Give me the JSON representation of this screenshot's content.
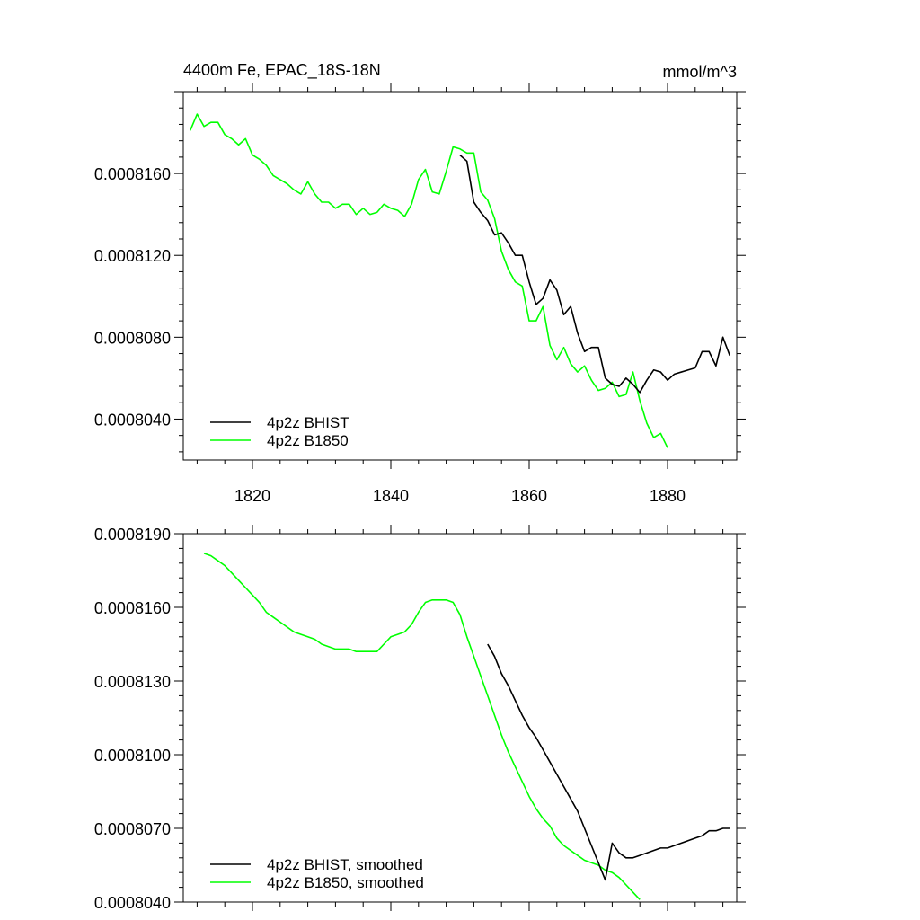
{
  "chart_data": [
    {
      "type": "line",
      "title_left": "4400m Fe, EPAC_18S-18N",
      "title_right": "mmol/m^3",
      "xlabel": "",
      "ylabel": "",
      "xlim": [
        1810,
        1890
      ],
      "ylim": [
        0.000802,
        0.00082
      ],
      "x_ticks": [
        1820,
        1840,
        1860,
        1880
      ],
      "x_tick_labels": [
        "1820",
        "1840",
        "1860",
        "1880"
      ],
      "y_ticks": [
        0.000804,
        0.000808,
        0.000812,
        0.000816
      ],
      "y_tick_labels": [
        "0.0008040",
        "0.0008080",
        "0.0008120",
        "0.0008160"
      ],
      "legend_position": "bottom-left",
      "series": [
        {
          "name": "4p2z BHIST",
          "color": "#000000",
          "x": [
            1850,
            1851,
            1852,
            1853,
            1854,
            1855,
            1856,
            1857,
            1858,
            1859,
            1860,
            1861,
            1862,
            1863,
            1864,
            1865,
            1866,
            1867,
            1868,
            1869,
            1870,
            1871,
            1872,
            1873,
            1874,
            1875,
            1876,
            1877,
            1878,
            1879,
            1880,
            1881,
            1882,
            1883,
            1884,
            1885,
            1886,
            1887,
            1888,
            1889
          ],
          "values": [
            0.0008169,
            0.0008166,
            0.0008146,
            0.0008141,
            0.0008137,
            0.000813,
            0.0008131,
            0.0008126,
            0.000812,
            0.000812,
            0.0008107,
            0.0008096,
            0.0008099,
            0.0008108,
            0.0008103,
            0.0008091,
            0.0008095,
            0.0008082,
            0.0008073,
            0.0008075,
            0.0008075,
            0.000806,
            0.0008057,
            0.0008056,
            0.000806,
            0.0008057,
            0.0008053,
            0.0008059,
            0.0008064,
            0.0008063,
            0.0008059,
            0.0008062,
            0.0008063,
            0.0008064,
            0.0008065,
            0.0008073,
            0.0008073,
            0.0008066,
            0.000808,
            0.0008071
          ]
        },
        {
          "name": "4p2z B1850",
          "color": "#00ff00",
          "x": [
            1811,
            1812,
            1813,
            1814,
            1815,
            1816,
            1817,
            1818,
            1819,
            1820,
            1821,
            1822,
            1823,
            1824,
            1825,
            1826,
            1827,
            1828,
            1829,
            1830,
            1831,
            1832,
            1833,
            1834,
            1835,
            1836,
            1837,
            1838,
            1839,
            1840,
            1841,
            1842,
            1843,
            1844,
            1845,
            1846,
            1847,
            1848,
            1849,
            1850,
            1851,
            1852,
            1853,
            1854,
            1855,
            1856,
            1857,
            1858,
            1859,
            1860,
            1861,
            1862,
            1863,
            1864,
            1865,
            1866,
            1867,
            1868,
            1869,
            1870,
            1871,
            1872,
            1873,
            1874,
            1875,
            1876,
            1877,
            1878,
            1879,
            1880
          ],
          "values": [
            0.0008181,
            0.0008189,
            0.0008183,
            0.0008185,
            0.0008185,
            0.0008179,
            0.0008177,
            0.0008174,
            0.0008177,
            0.0008169,
            0.0008167,
            0.0008164,
            0.0008159,
            0.0008157,
            0.0008155,
            0.0008152,
            0.000815,
            0.0008156,
            0.000815,
            0.0008146,
            0.0008146,
            0.0008143,
            0.0008145,
            0.0008145,
            0.000814,
            0.0008143,
            0.000814,
            0.0008141,
            0.0008145,
            0.0008143,
            0.0008142,
            0.0008139,
            0.0008145,
            0.0008157,
            0.0008162,
            0.0008151,
            0.000815,
            0.0008161,
            0.0008173,
            0.0008172,
            0.000817,
            0.000817,
            0.0008151,
            0.0008147,
            0.0008138,
            0.0008122,
            0.0008113,
            0.0008107,
            0.0008105,
            0.0008088,
            0.0008088,
            0.0008095,
            0.0008076,
            0.0008069,
            0.0008075,
            0.0008067,
            0.0008063,
            0.0008066,
            0.0008059,
            0.0008054,
            0.0008055,
            0.0008058,
            0.0008051,
            0.0008052,
            0.0008063,
            0.0008049,
            0.0008038,
            0.0008031,
            0.0008033,
            0.0008026
          ]
        }
      ]
    },
    {
      "type": "line",
      "title_left": "",
      "title_right": "",
      "xlabel": "",
      "ylabel": "",
      "xlim": [
        1810,
        1890
      ],
      "ylim": [
        0.000804,
        0.000819
      ],
      "x_ticks": [
        1820,
        1840,
        1860,
        1880
      ],
      "x_tick_labels": [],
      "y_ticks": [
        0.000804,
        0.000807,
        0.00081,
        0.000813,
        0.000816,
        0.000819
      ],
      "y_tick_labels": [
        "0.0008040",
        "0.0008070",
        "0.0008100",
        "0.0008130",
        "0.0008160",
        "0.0008190"
      ],
      "legend_position": "bottom-left",
      "series": [
        {
          "name": "4p2z BHIST, smoothed",
          "color": "#000000",
          "x": [
            1854,
            1855,
            1856,
            1857,
            1858,
            1859,
            1860,
            1861,
            1862,
            1863,
            1864,
            1865,
            1866,
            1867,
            1868,
            1869,
            1870,
            1871,
            1872,
            1873,
            1874,
            1875,
            1876,
            1877,
            1878,
            1879,
            1880,
            1881,
            1882,
            1883,
            1884,
            1885,
            1886,
            1887,
            1888,
            1889
          ],
          "values": [
            0.0008145,
            0.000814,
            0.0008133,
            0.0008128,
            0.0008122,
            0.0008116,
            0.0008111,
            0.0008107,
            0.0008102,
            0.0008097,
            0.0008092,
            0.0008087,
            0.0008082,
            0.0008077,
            0.000807,
            0.0008063,
            0.0008056,
            0.0008049,
            0.0008064,
            0.000806,
            0.0008058,
            0.0008058,
            0.0008059,
            0.000806,
            0.0008061,
            0.0008062,
            0.0008062,
            0.0008063,
            0.0008064,
            0.0008065,
            0.0008066,
            0.0008067,
            0.0008069,
            0.0008069,
            0.000807,
            0.000807
          ]
        },
        {
          "name": "4p2z B1850, smoothed",
          "color": "#00ff00",
          "x": [
            1813,
            1814,
            1815,
            1816,
            1817,
            1818,
            1819,
            1820,
            1821,
            1822,
            1823,
            1824,
            1825,
            1826,
            1827,
            1828,
            1829,
            1830,
            1831,
            1832,
            1833,
            1834,
            1835,
            1836,
            1837,
            1838,
            1839,
            1840,
            1841,
            1842,
            1843,
            1844,
            1845,
            1846,
            1847,
            1848,
            1849,
            1850,
            1851,
            1852,
            1853,
            1854,
            1855,
            1856,
            1857,
            1858,
            1859,
            1860,
            1861,
            1862,
            1863,
            1864,
            1865,
            1866,
            1867,
            1868,
            1869,
            1870,
            1871,
            1872,
            1873,
            1874,
            1875,
            1876
          ],
          "values": [
            0.0008182,
            0.0008181,
            0.0008179,
            0.0008177,
            0.0008174,
            0.0008171,
            0.0008168,
            0.0008165,
            0.0008162,
            0.0008158,
            0.0008156,
            0.0008154,
            0.0008152,
            0.000815,
            0.0008149,
            0.0008148,
            0.0008147,
            0.0008145,
            0.0008144,
            0.0008143,
            0.0008143,
            0.0008143,
            0.0008142,
            0.0008142,
            0.0008142,
            0.0008142,
            0.0008145,
            0.0008148,
            0.0008149,
            0.000815,
            0.0008153,
            0.0008158,
            0.0008162,
            0.0008163,
            0.0008163,
            0.0008163,
            0.0008162,
            0.0008157,
            0.0008148,
            0.000814,
            0.0008132,
            0.0008124,
            0.0008116,
            0.0008108,
            0.0008101,
            0.0008095,
            0.0008089,
            0.0008083,
            0.0008078,
            0.0008074,
            0.0008071,
            0.0008066,
            0.0008063,
            0.0008061,
            0.0008059,
            0.0008057,
            0.0008056,
            0.0008055,
            0.0008053,
            0.0008052,
            0.000805,
            0.0008047,
            0.0008044,
            0.0008041
          ]
        }
      ]
    }
  ]
}
